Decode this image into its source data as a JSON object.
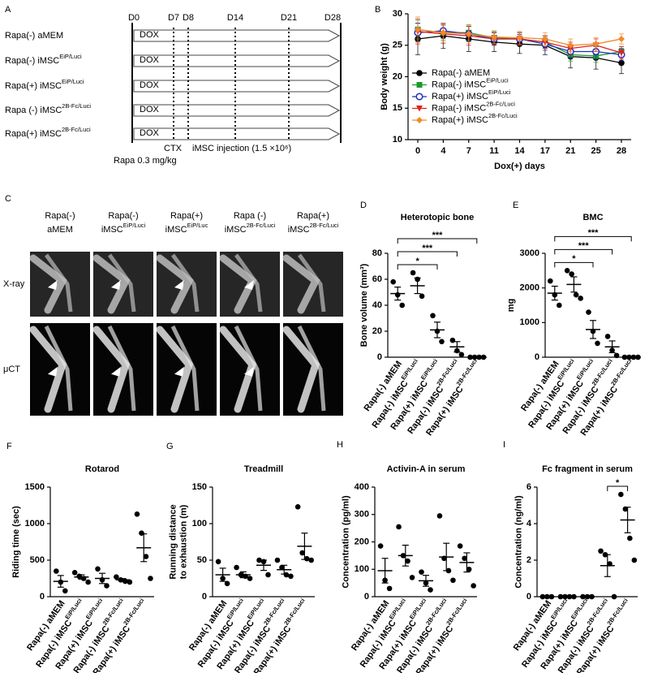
{
  "timeline": {
    "panel": "A",
    "days": [
      "D0",
      "D7",
      "D8",
      "D14",
      "D21",
      "D28"
    ],
    "groups": [
      {
        "name": "Rapa(-) aMEM"
      },
      {
        "name": "Rapa(-) iMSC",
        "sup": "EiP/Luci"
      },
      {
        "name": "Rapa(+) iMSC",
        "sup": "EiP/Luci"
      },
      {
        "name": "Rapa (-) iMSC",
        "sup": "2B-Fc/Luci"
      },
      {
        "name": "Rapa(+) iMSC",
        "sup": "2B-Fc/Luci"
      }
    ],
    "bar_label": "DOX",
    "ctx": "CTX",
    "injection": "iMSC injection (1.5 ×10⁶)",
    "rapa": "Rapa 0.3 mg/kg"
  },
  "images": {
    "panel": "C",
    "rows": [
      "X-ray",
      "μCT"
    ],
    "columns": [
      {
        "line1": "Rapa(-)",
        "name": "aMEM"
      },
      {
        "line1": "Rapa(-)",
        "name": "iMSC",
        "sup": "EiP/Luci"
      },
      {
        "line1": "Rapa(+)",
        "name": "iMSC",
        "sup": "EiP/Luc"
      },
      {
        "line1": "Rapa (-)",
        "name": "iMSC",
        "sup": "2B-Fc/Luci"
      },
      {
        "line1": "Rapa(+)",
        "name": "iMSC",
        "sup": "2B-Fc/Luci"
      }
    ]
  },
  "chart_data": [
    {
      "type": "line",
      "panel": "B",
      "xlabel": "Dox(+) days",
      "ylabel": "Body weight (g)",
      "categories": [
        "0",
        "4",
        "7",
        "11",
        "14",
        "17",
        "21",
        "25",
        "28"
      ],
      "ylim": [
        10,
        30
      ],
      "yticks": [
        10,
        15,
        20,
        25,
        30
      ],
      "series": [
        {
          "name": "Rapa(-) aMEM",
          "color": "#000000",
          "marker": "circle",
          "values": [
            26,
            26.5,
            26,
            25.5,
            25.2,
            25,
            23.2,
            23,
            22.2
          ],
          "errors": [
            2.5,
            2,
            2,
            1.5,
            1.5,
            1.5,
            1.8,
            1.8,
            1.7
          ]
        },
        {
          "name": "Rapa(-) iMSC",
          "sup": "EiP/Luci",
          "color": "#1a9a2a",
          "marker": "square",
          "values": [
            27.5,
            27,
            27,
            26.2,
            26,
            25.5,
            23.5,
            23.3,
            24
          ],
          "errors": [
            1.5,
            1.2,
            1.2,
            1,
            1,
            1,
            1,
            1,
            0.8
          ]
        },
        {
          "name": "Rapa(+) iMSC",
          "sup": "EiP/Luci",
          "color": "#1f2fbf",
          "marker": "circle-open",
          "values": [
            27,
            27.3,
            26.8,
            26,
            26,
            25.2,
            24,
            24,
            23.5
          ],
          "errors": [
            1.5,
            1.2,
            1.2,
            1,
            1,
            1,
            1,
            1.2,
            1
          ]
        },
        {
          "name": "Rapa(-) iMSC",
          "sup": "2B-Fc/Luci",
          "color": "#e0231c",
          "marker": "triangle-down",
          "values": [
            27.2,
            26.8,
            26.5,
            26,
            26,
            25.5,
            24.5,
            25,
            23.8
          ],
          "errors": [
            2,
            1.5,
            1.5,
            1,
            1,
            1,
            1,
            1,
            1
          ]
        },
        {
          "name": "Rapa(+) iMSC",
          "sup": "2B-Fc/Luci",
          "color": "#f08a2a",
          "marker": "diamond",
          "values": [
            27.5,
            27,
            26.8,
            26.3,
            26.2,
            26,
            25,
            25.2,
            26
          ],
          "errors": [
            2,
            1.5,
            1.5,
            1,
            1,
            1,
            1,
            1,
            0.8
          ]
        }
      ]
    },
    {
      "type": "dot",
      "panel": "D",
      "title": "Heterotopic bone",
      "ylabel": "Bone volume (mm³)",
      "ylim": [
        0,
        80
      ],
      "yticks": [
        0,
        20,
        40,
        60,
        80
      ],
      "categories": [
        {
          "name": "Rapa(-) aMEM"
        },
        {
          "name": "Rapa(-) iMSC",
          "sup": "EiP/Luci"
        },
        {
          "name": "Rapa(+) iMSC",
          "sup": "EiP/Luci"
        },
        {
          "name": "Rapa(-) iMSC",
          "sup": "2B-Fc/Luci"
        },
        {
          "name": "Rapa(+) iMSC",
          "sup": "2B-Fc/Luci"
        }
      ],
      "groups": [
        {
          "points": [
            58,
            48,
            40
          ],
          "mean": 49,
          "sem": 5
        },
        {
          "points": [
            65,
            60,
            47
          ],
          "mean": 55,
          "sem": 6
        },
        {
          "points": [
            32,
            20,
            12
          ],
          "mean": 21,
          "sem": 6
        },
        {
          "points": [
            13,
            5,
            2
          ],
          "mean": 8,
          "sem": 4
        },
        {
          "points": [
            0,
            0,
            0,
            0
          ],
          "mean": 0,
          "sem": 0
        }
      ],
      "comparisons": [
        {
          "from": 0,
          "to": 2,
          "label": "*"
        },
        {
          "from": 0,
          "to": 3,
          "label": "***"
        },
        {
          "from": 0,
          "to": 4,
          "label": "***"
        }
      ]
    },
    {
      "type": "dot",
      "panel": "E",
      "title": "BMC",
      "ylabel": "mg",
      "ylim": [
        0,
        3000
      ],
      "yticks": [
        0,
        1000,
        2000,
        3000
      ],
      "categories": [
        {
          "name": "Rapa(-) aMEM"
        },
        {
          "name": "Rapa(-) iMSC",
          "sup": "EiP/Luci"
        },
        {
          "name": "Rapa(+) iMSC",
          "sup": "EiP/Luci"
        },
        {
          "name": "Rapa(-) iMSC",
          "sup": "2B-Fc/Luci"
        },
        {
          "name": "Rapa(+) iMSC",
          "sup": "2B-Fc/Luci"
        }
      ],
      "groups": [
        {
          "points": [
            2200,
            1800,
            1500
          ],
          "mean": 1850,
          "sem": 200
        },
        {
          "points": [
            2500,
            2400,
            1800,
            1700
          ],
          "mean": 2100,
          "sem": 220
        },
        {
          "points": [
            1300,
            750,
            400
          ],
          "mean": 800,
          "sem": 260
        },
        {
          "points": [
            600,
            200,
            50
          ],
          "mean": 300,
          "sem": 170
        },
        {
          "points": [
            0,
            0,
            0,
            0
          ],
          "mean": 0,
          "sem": 0
        }
      ],
      "comparisons": [
        {
          "from": 0,
          "to": 2,
          "label": "*"
        },
        {
          "from": 0,
          "to": 3,
          "label": "***"
        },
        {
          "from": 0,
          "to": 4,
          "label": "***"
        }
      ]
    },
    {
      "type": "dot",
      "panel": "F",
      "title": "Rotarod",
      "ylabel": "Riding time (sec)",
      "ylim": [
        0,
        1500
      ],
      "yticks": [
        0,
        500,
        1000,
        1500
      ],
      "categories": [
        {
          "name": "Rapa(-) aMEM"
        },
        {
          "name": "Rapa(-) iMSC",
          "sup": "EiP/Luci"
        },
        {
          "name": "Rapa(+) iMSC",
          "sup": "EiP/Luci"
        },
        {
          "name": "Rapa(-) iMSC",
          "sup": "2B-Fc/Luci"
        },
        {
          "name": "Rapa(+) iMSC",
          "sup": "2B-Fc/Luci"
        }
      ],
      "groups": [
        {
          "points": [
            350,
            200,
            80
          ],
          "mean": 210,
          "sem": 80
        },
        {
          "points": [
            330,
            280,
            250,
            200
          ],
          "mean": 270,
          "sem": 30
        },
        {
          "points": [
            380,
            230,
            150
          ],
          "mean": 250,
          "sem": 70
        },
        {
          "points": [
            270,
            230,
            210,
            200
          ],
          "mean": 230,
          "sem": 18
        },
        {
          "points": [
            1130,
            870,
            550,
            250
          ],
          "mean": 670,
          "sem": 190
        }
      ]
    },
    {
      "type": "dot",
      "panel": "G",
      "title": "Treadmill",
      "ylabel": [
        "Running distance",
        "to exhaustion (m)"
      ],
      "ylim": [
        0,
        150
      ],
      "yticks": [
        0,
        50,
        100,
        150
      ],
      "categories": [
        {
          "name": "Rapa(-) aMEM"
        },
        {
          "name": "Rapa(-) iMSC",
          "sup": "EiP/Luci"
        },
        {
          "name": "Rapa(+) iMSC",
          "sup": "EiP/Luci"
        },
        {
          "name": "Rapa(-) iMSC",
          "sup": "2B-Fc/Luci"
        },
        {
          "name": "Rapa(+) iMSC",
          "sup": "2B-Fc/Luci"
        }
      ],
      "groups": [
        {
          "points": [
            48,
            25,
            18
          ],
          "mean": 30,
          "sem": 9
        },
        {
          "points": [
            40,
            30,
            28,
            25
          ],
          "mean": 30,
          "sem": 4
        },
        {
          "points": [
            50,
            48,
            30
          ],
          "mean": 43,
          "sem": 7
        },
        {
          "points": [
            50,
            40,
            30,
            28
          ],
          "mean": 37,
          "sem": 6
        },
        {
          "points": [
            123,
            60,
            52,
            50
          ],
          "mean": 69,
          "sem": 18
        }
      ]
    },
    {
      "type": "dot",
      "panel": "H",
      "title": "Activin-A in serum",
      "ylabel": "Concentration (pg/ml)",
      "ylim": [
        0,
        400
      ],
      "yticks": [
        0,
        100,
        200,
        300,
        400
      ],
      "categories": [
        {
          "name": "Rapa(-) aMEM"
        },
        {
          "name": "Rapa(-) iMSC",
          "sup": "EiP/Luci"
        },
        {
          "name": "Rapa(+) iMSC",
          "sup": "EiP/Luci"
        },
        {
          "name": "Rapa(-) iMSC",
          "sup": "2B-Fc/Luci"
        },
        {
          "name": "Rapa(+) iMSC",
          "sup": "2B-Fc/Luci"
        }
      ],
      "groups": [
        {
          "points": [
            185,
            60,
            30
          ],
          "mean": 95,
          "sem": 45
        },
        {
          "points": [
            255,
            150,
            130,
            70
          ],
          "mean": 150,
          "sem": 38
        },
        {
          "points": [
            90,
            50,
            25
          ],
          "mean": 58,
          "sem": 20
        },
        {
          "points": [
            295,
            140,
            95,
            60
          ],
          "mean": 145,
          "sem": 50
        },
        {
          "points": [
            185,
            140,
            100,
            40
          ],
          "mean": 125,
          "sem": 35
        }
      ]
    },
    {
      "type": "dot",
      "panel": "I",
      "title": "Fc fragment in serum",
      "ylabel": "Concentration (ng/ml)",
      "ylim": [
        0,
        6
      ],
      "yticks": [
        0,
        2,
        4,
        6
      ],
      "categories": [
        {
          "name": "Rapa(-) aMEM"
        },
        {
          "name": "Rapa(-) iMSC",
          "sup": "EiP/Luci"
        },
        {
          "name": "Rapa(+) iMSC",
          "sup": "EiP/Luci"
        },
        {
          "name": "Rapa(-) iMSC",
          "sup": "2B-Fc/Luci"
        },
        {
          "name": "Rapa(+) iMSC",
          "sup": "2B-Fc/Luci"
        }
      ],
      "groups": [
        {
          "points": [
            0,
            0,
            0
          ],
          "mean": 0,
          "sem": 0
        },
        {
          "points": [
            0,
            0,
            0,
            0
          ],
          "mean": 0,
          "sem": 0
        },
        {
          "points": [
            0,
            0,
            0
          ],
          "mean": 0,
          "sem": 0
        },
        {
          "points": [
            2.5,
            2.3,
            1.8,
            0
          ],
          "mean": 1.7,
          "sem": 0.6
        },
        {
          "points": [
            5.6,
            4.8,
            3.2,
            2.0
          ],
          "mean": 4.2,
          "sem": 0.7
        }
      ],
      "comparisons": [
        {
          "from": 3,
          "to": 4,
          "label": "*"
        }
      ]
    }
  ]
}
